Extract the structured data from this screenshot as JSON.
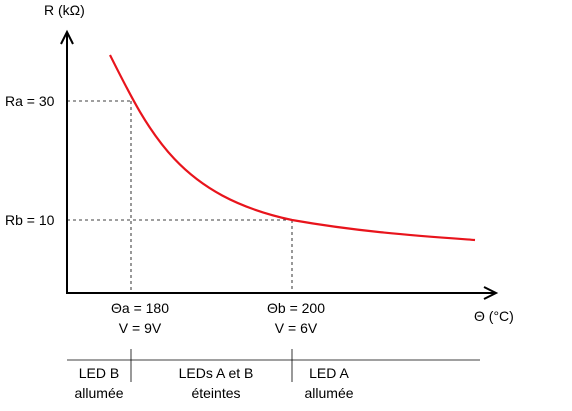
{
  "axes": {
    "y_label": "R (kΩ)",
    "x_label": "Θ (°C)"
  },
  "y_markers": [
    {
      "label": "Ra = 30"
    },
    {
      "label": "Rb = 10"
    }
  ],
  "x_markers": [
    {
      "line1": "Θa = 180",
      "line2": "V = 9V"
    },
    {
      "line1": "Θb = 200",
      "line2": "V = 6V"
    }
  ],
  "zones": [
    {
      "line1": "LED B",
      "line2": "allumée"
    },
    {
      "line1": "LEDs A et B",
      "line2": "éteintes"
    },
    {
      "line1": "LED A",
      "line2": "allumée"
    }
  ],
  "colors": {
    "curve": "#e8141c",
    "axis": "#000000",
    "guide": "#000000"
  }
}
